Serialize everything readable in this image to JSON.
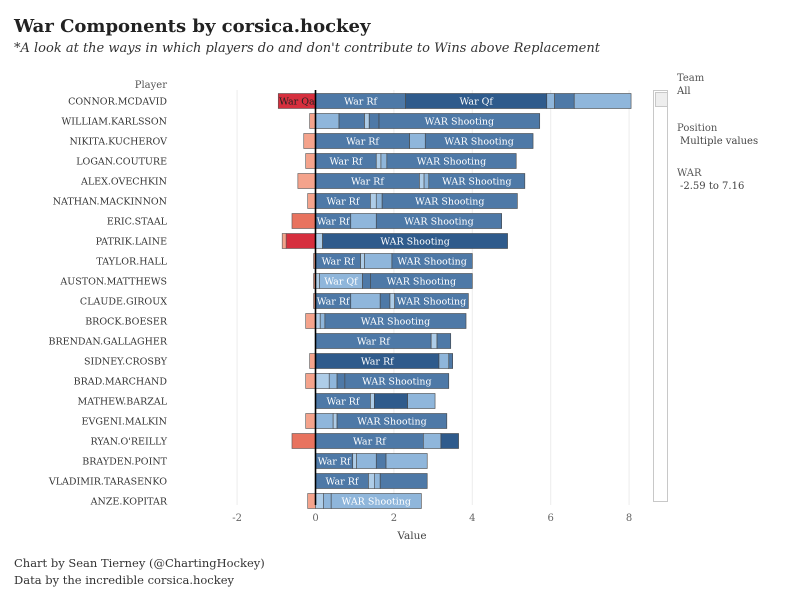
{
  "header": {
    "title": "War Components by corsica.hockey",
    "subtitle": "*A look at the ways in which players do and don't contribute to Wins above Replacement"
  },
  "filters": {
    "team_label": "Team",
    "team_value": "All",
    "position_label": "Position",
    "position_value": "Multiple values",
    "war_label": "WAR",
    "war_value": "-2.59 to 7.16"
  },
  "footer": {
    "credit_line": "Chart by Sean Tierney (@ChartingHockey)",
    "data_line": "Data by the incredible corsica.hockey"
  },
  "colors": {
    "neg_dark": "#d62f3e",
    "neg_mid": "#e8735f",
    "neg_light": "#f4a38c",
    "pos_dark": "#2f5b8c",
    "pos_mid": "#4e79a7",
    "pos_light": "#8fb6db",
    "pos_pale": "#aecde8",
    "axis_line": "#000000"
  },
  "chart_data": {
    "type": "bar",
    "stacked": true,
    "orientation": "horizontal",
    "row_header": "Player",
    "xlabel": "Value",
    "xlim": [
      -2.5,
      8.2
    ],
    "xticks": [
      -2,
      0,
      2,
      4,
      6,
      8
    ],
    "grid": true,
    "categories": [
      "CONNOR.MCDAVID",
      "WILLIAM.KARLSSON",
      "NIKITA.KUCHEROV",
      "LOGAN.COUTURE",
      "ALEX.OVECHKIN",
      "NATHAN.MACKINNON",
      "ERIC.STAAL",
      "PATRIK.LAINE",
      "TAYLOR.HALL",
      "AUSTON.MATTHEWS",
      "CLAUDE.GIROUX",
      "BROCK.BOESER",
      "BRENDAN.GALLAGHER",
      "SIDNEY.CROSBY",
      "BRAD.MARCHAND",
      "MATHEW.BARZAL",
      "EVGENI.MALKIN",
      "RYAN.O'REILLY",
      "BRAYDEN.POINT",
      "VLADIMIR.TARASENKO",
      "ANZE.KOPITAR"
    ],
    "rows": [
      {
        "neg": [
          {
            "v": -0.95,
            "c": "neg_dark",
            "label": "War Qa"
          }
        ],
        "pos": [
          {
            "v": 2.3,
            "c": "pos_mid",
            "label": "War Rf"
          },
          {
            "v": 3.6,
            "c": "pos_dark",
            "label": "War Qf"
          },
          {
            "v": 0.2,
            "c": "pos_light"
          },
          {
            "v": 0.5,
            "c": "pos_mid"
          },
          {
            "v": 1.45,
            "c": "pos_light"
          }
        ]
      },
      {
        "neg": [
          {
            "v": -0.15,
            "c": "neg_light"
          }
        ],
        "pos": [
          {
            "v": 0.6,
            "c": "pos_light"
          },
          {
            "v": 0.65,
            "c": "pos_mid"
          },
          {
            "v": 0.12,
            "c": "pos_pale"
          },
          {
            "v": 0.25,
            "c": "pos_mid"
          },
          {
            "v": 4.1,
            "c": "pos_mid",
            "label": "WAR Shooting"
          }
        ]
      },
      {
        "neg": [
          {
            "v": -0.3,
            "c": "neg_light"
          }
        ],
        "pos": [
          {
            "v": 2.4,
            "c": "pos_mid",
            "label": "War Rf"
          },
          {
            "v": 0.4,
            "c": "pos_light"
          },
          {
            "v": 2.75,
            "c": "pos_mid",
            "label": "WAR Shooting"
          }
        ]
      },
      {
        "neg": [
          {
            "v": -0.25,
            "c": "neg_light"
          }
        ],
        "pos": [
          {
            "v": 1.55,
            "c": "pos_mid",
            "label": "War Rf"
          },
          {
            "v": 0.12,
            "c": "pos_pale"
          },
          {
            "v": 0.15,
            "c": "pos_light"
          },
          {
            "v": 3.3,
            "c": "pos_mid",
            "label": "WAR Shooting"
          }
        ]
      },
      {
        "neg": [
          {
            "v": -0.45,
            "c": "neg_light"
          }
        ],
        "pos": [
          {
            "v": 2.65,
            "c": "pos_mid",
            "label": "War Rf"
          },
          {
            "v": 0.12,
            "c": "pos_pale"
          },
          {
            "v": 0.12,
            "c": "pos_light"
          },
          {
            "v": 2.45,
            "c": "pos_mid",
            "label": "WAR Shooting"
          }
        ]
      },
      {
        "neg": [
          {
            "v": -0.2,
            "c": "neg_light"
          }
        ],
        "pos": [
          {
            "v": 1.4,
            "c": "pos_mid",
            "label": "War Rf"
          },
          {
            "v": 0.15,
            "c": "pos_pale"
          },
          {
            "v": 0.15,
            "c": "pos_light"
          },
          {
            "v": 3.45,
            "c": "pos_mid",
            "label": "WAR Shooting"
          }
        ]
      },
      {
        "neg": [
          {
            "v": -0.6,
            "c": "neg_mid"
          }
        ],
        "pos": [
          {
            "v": 0.9,
            "c": "pos_mid",
            "label": "War Rf"
          },
          {
            "v": 0.65,
            "c": "pos_light"
          },
          {
            "v": 3.2,
            "c": "pos_mid",
            "label": "WAR Shooting"
          }
        ]
      },
      {
        "neg": [
          {
            "v": -0.75,
            "c": "neg_dark"
          },
          {
            "v": -0.1,
            "c": "neg_light"
          }
        ],
        "pos": [
          {
            "v": 0.18,
            "c": "pos_pale"
          },
          {
            "v": 4.72,
            "c": "pos_dark",
            "label": "WAR Shooting"
          }
        ]
      },
      {
        "neg": [
          {
            "v": -0.05,
            "c": "neg_light"
          }
        ],
        "pos": [
          {
            "v": 1.15,
            "c": "pos_mid",
            "label": "War Rf"
          },
          {
            "v": 0.1,
            "c": "pos_pale"
          },
          {
            "v": 0.7,
            "c": "pos_light"
          },
          {
            "v": 2.05,
            "c": "pos_mid",
            "label": "WAR Shooting"
          }
        ]
      },
      {
        "neg": [
          {
            "v": -0.05,
            "c": "neg_light"
          }
        ],
        "pos": [
          {
            "v": 0.1,
            "c": "pos_pale"
          },
          {
            "v": 1.1,
            "c": "pos_light",
            "label": "War Qf"
          },
          {
            "v": 0.2,
            "c": "pos_mid"
          },
          {
            "v": 2.6,
            "c": "pos_mid",
            "label": "WAR Shooting"
          }
        ]
      },
      {
        "neg": [
          {
            "v": -0.05,
            "c": "neg_light"
          }
        ],
        "pos": [
          {
            "v": 0.9,
            "c": "pos_mid",
            "label": "War Rf"
          },
          {
            "v": 0.75,
            "c": "pos_light"
          },
          {
            "v": 0.25,
            "c": "pos_mid"
          },
          {
            "v": 0.12,
            "c": "pos_pale"
          },
          {
            "v": 1.88,
            "c": "pos_mid",
            "label": "WAR Shooting"
          }
        ]
      },
      {
        "neg": [
          {
            "v": -0.25,
            "c": "neg_light"
          }
        ],
        "pos": [
          {
            "v": 0.12,
            "c": "pos_pale"
          },
          {
            "v": 0.12,
            "c": "pos_light"
          },
          {
            "v": 3.6,
            "c": "pos_mid",
            "label": "WAR Shooting"
          }
        ]
      },
      {
        "neg": [],
        "pos": [
          {
            "v": 2.95,
            "c": "pos_mid",
            "label": "War Rf"
          },
          {
            "v": 0.15,
            "c": "pos_pale"
          },
          {
            "v": 0.35,
            "c": "pos_mid"
          }
        ]
      },
      {
        "neg": [
          {
            "v": -0.15,
            "c": "neg_light"
          }
        ],
        "pos": [
          {
            "v": 3.15,
            "c": "pos_dark",
            "label": "War Rf"
          },
          {
            "v": 0.25,
            "c": "pos_light"
          },
          {
            "v": 0.1,
            "c": "pos_mid"
          }
        ]
      },
      {
        "neg": [
          {
            "v": -0.25,
            "c": "neg_light"
          }
        ],
        "pos": [
          {
            "v": 0.35,
            "c": "pos_pale"
          },
          {
            "v": 0.2,
            "c": "pos_light"
          },
          {
            "v": 0.2,
            "c": "pos_mid"
          },
          {
            "v": 2.65,
            "c": "pos_mid",
            "label": "WAR Shooting"
          }
        ]
      },
      {
        "neg": [],
        "pos": [
          {
            "v": 1.4,
            "c": "pos_mid",
            "label": "War Rf"
          },
          {
            "v": 0.1,
            "c": "pos_pale"
          },
          {
            "v": 0.85,
            "c": "pos_dark"
          },
          {
            "v": 0.7,
            "c": "pos_light"
          }
        ]
      },
      {
        "neg": [
          {
            "v": -0.25,
            "c": "neg_light"
          }
        ],
        "pos": [
          {
            "v": 0.45,
            "c": "pos_light"
          },
          {
            "v": 0.1,
            "c": "pos_pale"
          },
          {
            "v": 2.8,
            "c": "pos_mid",
            "label": "WAR Shooting"
          }
        ]
      },
      {
        "neg": [
          {
            "v": -0.6,
            "c": "neg_mid"
          }
        ],
        "pos": [
          {
            "v": 2.75,
            "c": "pos_mid",
            "label": "War Rf"
          },
          {
            "v": 0.45,
            "c": "pos_light"
          },
          {
            "v": 0.45,
            "c": "pos_dark"
          }
        ]
      },
      {
        "neg": [],
        "pos": [
          {
            "v": 0.95,
            "c": "pos_mid",
            "label": "War Rf"
          },
          {
            "v": 0.1,
            "c": "pos_pale"
          },
          {
            "v": 0.5,
            "c": "pos_light"
          },
          {
            "v": 0.25,
            "c": "pos_mid"
          },
          {
            "v": 1.05,
            "c": "pos_light"
          }
        ]
      },
      {
        "neg": [],
        "pos": [
          {
            "v": 1.35,
            "c": "pos_mid",
            "label": "War Rf"
          },
          {
            "v": 0.15,
            "c": "pos_pale"
          },
          {
            "v": 0.15,
            "c": "pos_light"
          },
          {
            "v": 1.2,
            "c": "pos_mid"
          }
        ]
      },
      {
        "neg": [
          {
            "v": -0.2,
            "c": "neg_light"
          }
        ],
        "pos": [
          {
            "v": 0.2,
            "c": "pos_pale"
          },
          {
            "v": 0.2,
            "c": "pos_light"
          },
          {
            "v": 2.3,
            "c": "pos_light",
            "label": "WAR Shooting"
          }
        ]
      }
    ]
  }
}
